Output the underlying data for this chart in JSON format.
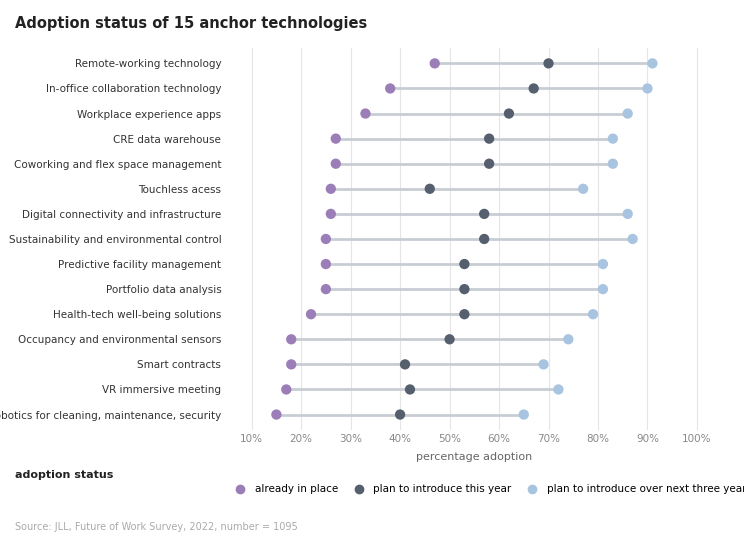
{
  "title": "Adoption status of 15 anchor technologies",
  "xlabel": "percentage adoption",
  "source": "Source: JLL, Future of Work Survey, 2022, number = 1095",
  "categories": [
    "Remote-working technology",
    "In-office collaboration technology",
    "Workplace experience apps",
    "CRE data warehouse",
    "Coworking and flex space management",
    "Touchless acess",
    "Digital connectivity and infrastructure",
    "Sustainability and environmental control",
    "Predictive facility management",
    "Portfolio data analysis",
    "Health-tech well-being solutions",
    "Occupancy and environmental sensors",
    "Smart contracts",
    "VR immersive meeting",
    "Robotics for cleaning, maintenance, security"
  ],
  "already_in_place": [
    47,
    38,
    33,
    27,
    27,
    26,
    26,
    25,
    25,
    25,
    22,
    18,
    18,
    17,
    15
  ],
  "plan_this_year": [
    70,
    67,
    62,
    58,
    58,
    46,
    57,
    57,
    53,
    53,
    53,
    50,
    41,
    42,
    40
  ],
  "plan_three_years": [
    91,
    90,
    86,
    83,
    83,
    77,
    86,
    87,
    81,
    81,
    79,
    74,
    69,
    72,
    65
  ],
  "color_already": "#9b7db8",
  "color_this_year": "#555f6e",
  "color_three_years": "#a8c4e0",
  "color_line": "#c8cdd4",
  "background": "#ffffff",
  "xlim": [
    0.05,
    1.05
  ],
  "xticks": [
    0.1,
    0.2,
    0.3,
    0.4,
    0.5,
    0.6,
    0.7,
    0.8,
    0.9,
    1.0
  ],
  "xtick_labels": [
    "10%",
    "20%",
    "30%",
    "40%",
    "50%",
    "60%",
    "70%",
    "80%",
    "90%",
    "100%"
  ]
}
